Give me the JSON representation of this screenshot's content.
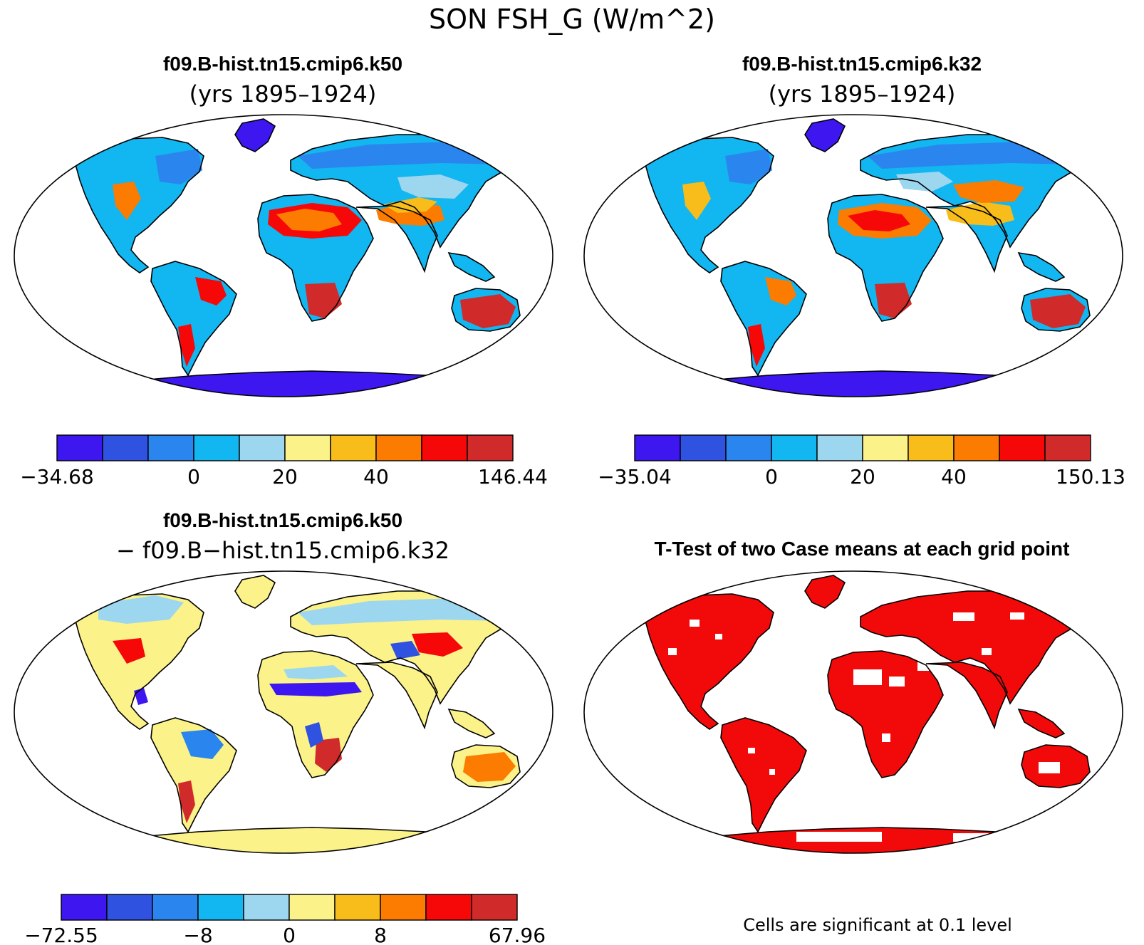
{
  "figure": {
    "title": "SON FSH_G (W/m^2)"
  },
  "panels": [
    {
      "title": "f09.B-hist.tn15.cmip6.k50",
      "subtitle": "(yrs 1895–1924)",
      "colorbar": {
        "colors": [
          "#3d16f0",
          "#2f52e0",
          "#2a86ee",
          "#12b6f0",
          "#9dd6ef",
          "#fbf28a",
          "#f8bd1a",
          "#fb7c00",
          "#f60808",
          "#d12a2a"
        ],
        "tick_labels": [
          "−34.68",
          "0",
          "20",
          "40",
          "146.44"
        ]
      }
    },
    {
      "title": "f09.B-hist.tn15.cmip6.k32",
      "subtitle": "(yrs 1895–1924)",
      "colorbar": {
        "colors": [
          "#3d16f0",
          "#2f52e0",
          "#2a86ee",
          "#12b6f0",
          "#9dd6ef",
          "#fbf28a",
          "#f8bd1a",
          "#fb7c00",
          "#f60808",
          "#d12a2a"
        ],
        "tick_labels": [
          "−35.04",
          "0",
          "20",
          "40",
          "150.13"
        ]
      }
    },
    {
      "title": "f09.B-hist.tn15.cmip6.k50",
      "subtitle": "− f09.B−hist.tn15.cmip6.k32",
      "colorbar": {
        "colors": [
          "#3d16f0",
          "#2f52e0",
          "#2a86ee",
          "#12b6f0",
          "#9dd6ef",
          "#fbf28a",
          "#f8bd1a",
          "#fb7c00",
          "#f60808",
          "#d12a2a"
        ],
        "tick_labels": [
          "−72.55",
          "−8",
          "0",
          "8",
          "67.96"
        ]
      }
    },
    {
      "title": "T-Test of two Case means at each grid point",
      "footnote": "Cells are significant at 0.1 level",
      "colors": {
        "significant": "#f20a0a"
      }
    }
  ]
}
